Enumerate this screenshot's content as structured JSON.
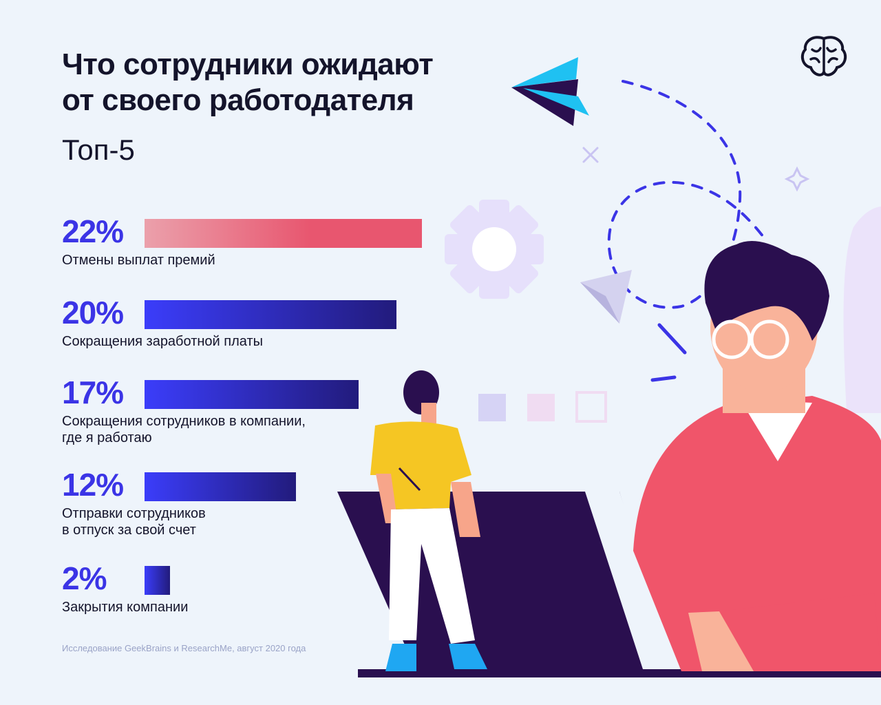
{
  "title_line1": "Что сотрудники ожидают",
  "title_line2": "от своего работодателя",
  "subtitle": "Топ-5",
  "source": "Исследование GeekBrains и ResearchMe, август 2020 года",
  "colors": {
    "percent_text": "#3b34e6",
    "bar_pink_start": "#eba0ab",
    "bar_pink_end": "#e8566f",
    "bar_blue_start": "#3b3dfa",
    "bar_blue_end": "#221b7c"
  },
  "icons": [
    "brain-logo-icon",
    "paper-plane-icon",
    "gear-icon",
    "sparkle-icon",
    "cross-icon"
  ],
  "chart_data": {
    "type": "bar",
    "orientation": "horizontal",
    "unit": "%",
    "xlim": [
      0,
      22
    ],
    "items": [
      {
        "value": 22,
        "value_label": "22%",
        "label_lines": [
          "Отмены выплат премий"
        ],
        "color": "pink"
      },
      {
        "value": 20,
        "value_label": "20%",
        "label_lines": [
          "Сокращения заработной платы"
        ],
        "color": "blue"
      },
      {
        "value": 17,
        "value_label": "17%",
        "label_lines": [
          "Сокращения сотрудников в компании,",
          "где я работаю"
        ],
        "color": "blue"
      },
      {
        "value": 12,
        "value_label": "12%",
        "label_lines": [
          "Отправки сотрудников",
          "в отпуск за свой счет"
        ],
        "color": "blue"
      },
      {
        "value": 2,
        "value_label": "2%",
        "label_lines": [
          "Закрытия компании"
        ],
        "color": "blue"
      }
    ]
  }
}
